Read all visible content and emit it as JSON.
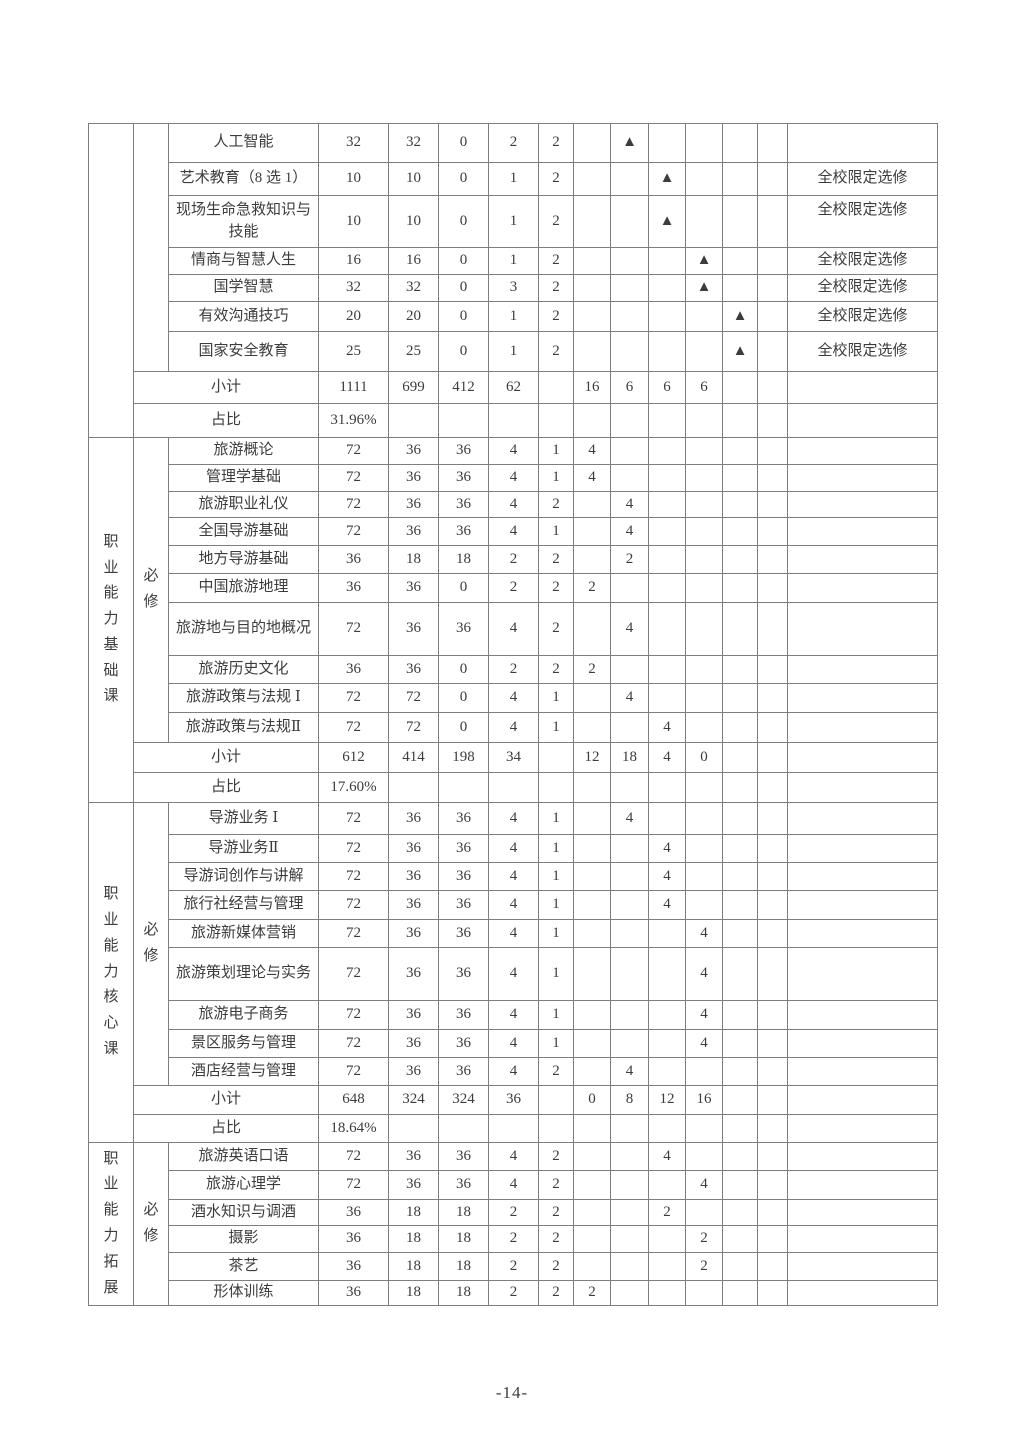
{
  "page_number": "-14-",
  "table": {
    "sections": [
      {
        "category_label": "",
        "sub_label": "",
        "courses": [
          {
            "name": "人工智能",
            "total": "32",
            "theory": "32",
            "practice": "0",
            "credit": "2",
            "exam": "2",
            "s2": "▲",
            "remark": ""
          },
          {
            "name": "艺术教育（8 选 1）",
            "total": "10",
            "theory": "10",
            "practice": "0",
            "credit": "1",
            "exam": "2",
            "s3": "▲",
            "remark": "全校限定选修"
          },
          {
            "name": "现场生命急救知识与技能",
            "total": "10",
            "theory": "10",
            "practice": "0",
            "credit": "1",
            "exam": "2",
            "s3": "▲",
            "remark": "全校限定选修"
          },
          {
            "name": "情商与智慧人生",
            "total": "16",
            "theory": "16",
            "practice": "0",
            "credit": "1",
            "exam": "2",
            "s4": "▲",
            "remark": "全校限定选修"
          },
          {
            "name": "国学智慧",
            "total": "32",
            "theory": "32",
            "practice": "0",
            "credit": "3",
            "exam": "2",
            "s4": "▲",
            "remark": "全校限定选修"
          },
          {
            "name": "有效沟通技巧",
            "total": "20",
            "theory": "20",
            "practice": "0",
            "credit": "1",
            "exam": "2",
            "s5": "▲",
            "remark": "全校限定选修"
          },
          {
            "name": "国家安全教育",
            "total": "25",
            "theory": "25",
            "practice": "0",
            "credit": "1",
            "exam": "2",
            "s5": "▲",
            "remark": "全校限定选修"
          }
        ],
        "subtotal": {
          "label": "小计",
          "total": "1111",
          "theory": "699",
          "practice": "412",
          "credit": "62",
          "s1": "16",
          "s2": "6",
          "s3": "6",
          "s4": "6"
        },
        "ratio": {
          "label": "占比",
          "value": "31.96%"
        }
      },
      {
        "category_label": "职业能力基础课",
        "sub_label": "必修",
        "courses": [
          {
            "name": "旅游概论",
            "total": "72",
            "theory": "36",
            "practice": "36",
            "credit": "4",
            "exam": "1",
            "s1": "4"
          },
          {
            "name": "管理学基础",
            "total": "72",
            "theory": "36",
            "practice": "36",
            "credit": "4",
            "exam": "1",
            "s1": "4"
          },
          {
            "name": "旅游职业礼仪",
            "total": "72",
            "theory": "36",
            "practice": "36",
            "credit": "4",
            "exam": "2",
            "s2": "4"
          },
          {
            "name": "全国导游基础",
            "total": "72",
            "theory": "36",
            "practice": "36",
            "credit": "4",
            "exam": "1",
            "s2": "4"
          },
          {
            "name": "地方导游基础",
            "total": "36",
            "theory": "18",
            "practice": "18",
            "credit": "2",
            "exam": "2",
            "s2": "2"
          },
          {
            "name": "中国旅游地理",
            "total": "36",
            "theory": "36",
            "practice": "0",
            "credit": "2",
            "exam": "2",
            "s1": "2"
          },
          {
            "name": "旅游地与目的地概况",
            "total": "72",
            "theory": "36",
            "practice": "36",
            "credit": "4",
            "exam": "2",
            "s2": "4"
          },
          {
            "name": "旅游历史文化",
            "total": "36",
            "theory": "36",
            "practice": "0",
            "credit": "2",
            "exam": "2",
            "s1": "2"
          },
          {
            "name": "旅游政策与法规 Ⅰ",
            "total": "72",
            "theory": "72",
            "practice": "0",
            "credit": "4",
            "exam": "1",
            "s2": "4"
          },
          {
            "name": "旅游政策与法规Ⅱ",
            "total": "72",
            "theory": "72",
            "practice": "0",
            "credit": "4",
            "exam": "1",
            "s3": "4"
          }
        ],
        "subtotal": {
          "label": "小计",
          "total": "612",
          "theory": "414",
          "practice": "198",
          "credit": "34",
          "s1": "12",
          "s2": "18",
          "s3": "4",
          "s4": "0"
        },
        "ratio": {
          "label": "占比",
          "value": "17.60%"
        }
      },
      {
        "category_label": "职业能力核心课",
        "sub_label": "必修",
        "courses": [
          {
            "name": "导游业务 Ⅰ",
            "total": "72",
            "theory": "36",
            "practice": "36",
            "credit": "4",
            "exam": "1",
            "s2": "4"
          },
          {
            "name": "导游业务Ⅱ",
            "total": "72",
            "theory": "36",
            "practice": "36",
            "credit": "4",
            "exam": "1",
            "s3": "4"
          },
          {
            "name": "导游词创作与讲解",
            "total": "72",
            "theory": "36",
            "practice": "36",
            "credit": "4",
            "exam": "1",
            "s3": "4"
          },
          {
            "name": "旅行社经营与管理",
            "total": "72",
            "theory": "36",
            "practice": "36",
            "credit": "4",
            "exam": "1",
            "s3": "4"
          },
          {
            "name": "旅游新媒体营销",
            "total": "72",
            "theory": "36",
            "practice": "36",
            "credit": "4",
            "exam": "1",
            "s4": "4"
          },
          {
            "name": "旅游策划理论与实务",
            "total": "72",
            "theory": "36",
            "practice": "36",
            "credit": "4",
            "exam": "1",
            "s4": "4"
          },
          {
            "name": "旅游电子商务",
            "total": "72",
            "theory": "36",
            "practice": "36",
            "credit": "4",
            "exam": "1",
            "s4": "4"
          },
          {
            "name": "景区服务与管理",
            "total": "72",
            "theory": "36",
            "practice": "36",
            "credit": "4",
            "exam": "1",
            "s4": "4"
          },
          {
            "name": "酒店经营与管理",
            "total": "72",
            "theory": "36",
            "practice": "36",
            "credit": "4",
            "exam": "2",
            "s2": "4"
          }
        ],
        "subtotal": {
          "label": "小计",
          "total": "648",
          "theory": "324",
          "practice": "324",
          "credit": "36",
          "s1": "0",
          "s2": "8",
          "s3": "12",
          "s4": "16"
        },
        "ratio": {
          "label": "占比",
          "value": "18.64%"
        }
      },
      {
        "category_label": "职业能力拓展",
        "sub_label": "必修",
        "courses": [
          {
            "name": "旅游英语口语",
            "total": "72",
            "theory": "36",
            "practice": "36",
            "credit": "4",
            "exam": "2",
            "s3": "4"
          },
          {
            "name": "旅游心理学",
            "total": "72",
            "theory": "36",
            "practice": "36",
            "credit": "4",
            "exam": "2",
            "s4": "4"
          },
          {
            "name": "酒水知识与调酒",
            "total": "36",
            "theory": "18",
            "practice": "18",
            "credit": "2",
            "exam": "2",
            "s3": "2"
          },
          {
            "name": "摄影",
            "total": "36",
            "theory": "18",
            "practice": "18",
            "credit": "2",
            "exam": "2",
            "s4": "2"
          },
          {
            "name": "茶艺",
            "total": "36",
            "theory": "18",
            "practice": "18",
            "credit": "2",
            "exam": "2",
            "s4": "2"
          },
          {
            "name": "形体训练",
            "total": "36",
            "theory": "18",
            "practice": "18",
            "credit": "2",
            "exam": "2",
            "s1": "2"
          }
        ]
      }
    ]
  }
}
